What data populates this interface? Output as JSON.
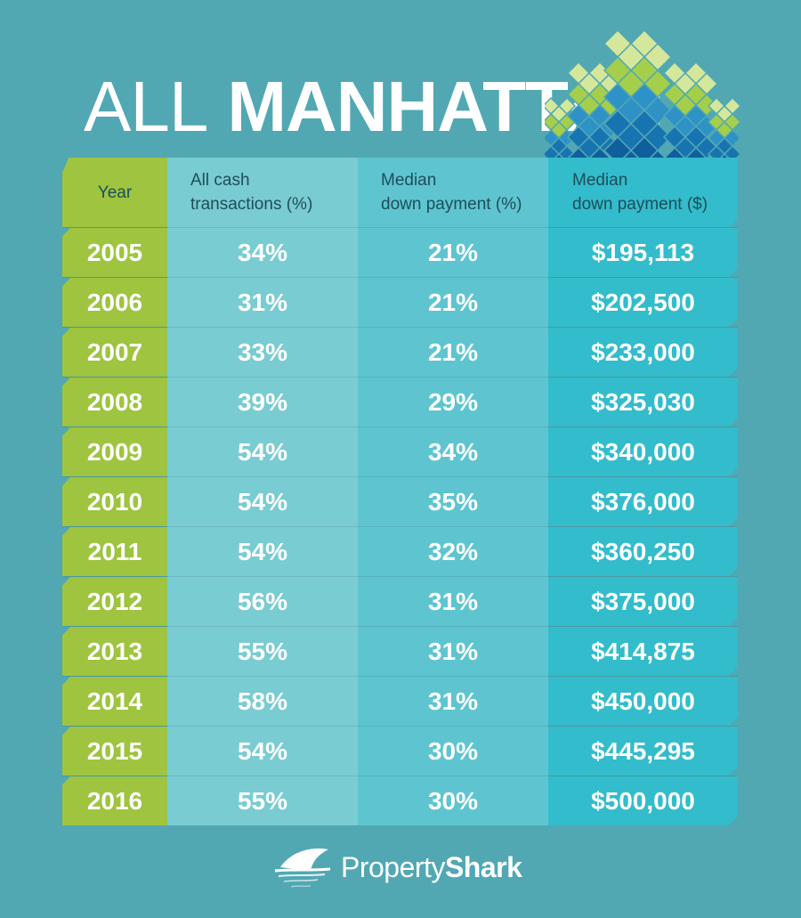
{
  "title": {
    "light": "ALL",
    "bold": "MANHATTAN"
  },
  "colors": {
    "background": "#51a8b3",
    "year_column": "#9ec440",
    "cash_column": "#79ccd1",
    "down_payment_pct_column": "#5ec5d0",
    "down_payment_usd_column": "#33bccb"
  },
  "chart_data": {
    "type": "table",
    "columns": [
      "Year",
      "All cash transactions (%)",
      "Median down payment (%)",
      "Median down payment ($)"
    ],
    "header_lines": [
      [
        "Year"
      ],
      [
        "All cash",
        "transactions (%)"
      ],
      [
        "Median",
        "down payment (%)"
      ],
      [
        "Median",
        "down payment ($)"
      ]
    ],
    "rows": [
      {
        "year": "2005",
        "cash": "34%",
        "dp_pct": "21%",
        "dp_usd": "$195,113"
      },
      {
        "year": "2006",
        "cash": "31%",
        "dp_pct": "21%",
        "dp_usd": "$202,500"
      },
      {
        "year": "2007",
        "cash": "33%",
        "dp_pct": "21%",
        "dp_usd": "$233,000"
      },
      {
        "year": "2008",
        "cash": "39%",
        "dp_pct": "29%",
        "dp_usd": "$325,030"
      },
      {
        "year": "2009",
        "cash": "54%",
        "dp_pct": "34%",
        "dp_usd": "$340,000"
      },
      {
        "year": "2010",
        "cash": "54%",
        "dp_pct": "35%",
        "dp_usd": "$376,000"
      },
      {
        "year": "2011",
        "cash": "54%",
        "dp_pct": "32%",
        "dp_usd": "$360,250"
      },
      {
        "year": "2012",
        "cash": "56%",
        "dp_pct": "31%",
        "dp_usd": "$375,000"
      },
      {
        "year": "2013",
        "cash": "55%",
        "dp_pct": "31%",
        "dp_usd": "$414,875"
      },
      {
        "year": "2014",
        "cash": "58%",
        "dp_pct": "31%",
        "dp_usd": "$450,000"
      },
      {
        "year": "2015",
        "cash": "54%",
        "dp_pct": "30%",
        "dp_usd": "$445,295"
      },
      {
        "year": "2016",
        "cash": "55%",
        "dp_pct": "30%",
        "dp_usd": "$500,000"
      }
    ]
  },
  "logo": {
    "brand_light": "Property",
    "brand_bold": "Shark",
    "icon": "shark-fin-icon"
  }
}
